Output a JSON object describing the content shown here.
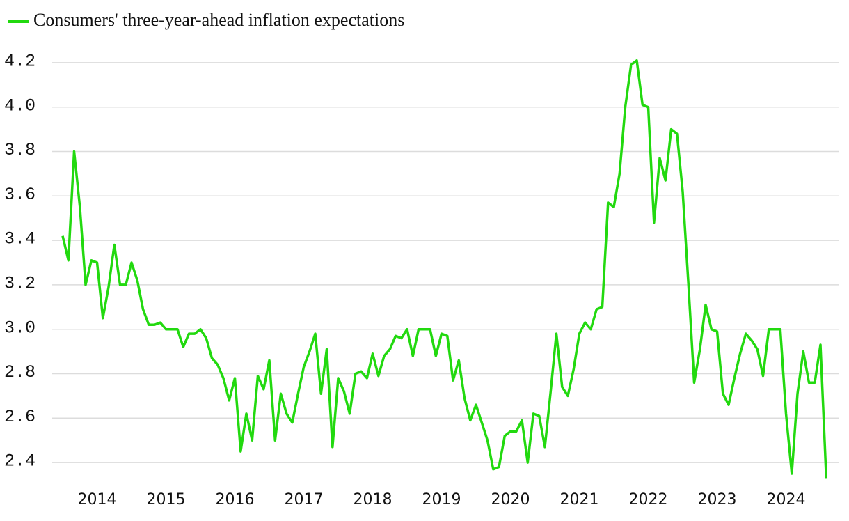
{
  "chart_data": {
    "type": "line",
    "categories": [
      null,
      null,
      null,
      null,
      null,
      null,
      "2014",
      null,
      null,
      null,
      null,
      null,
      null,
      null,
      null,
      null,
      null,
      null,
      "2015",
      null,
      null,
      null,
      null,
      null,
      null,
      null,
      null,
      null,
      null,
      null,
      "2016",
      null,
      null,
      null,
      null,
      null,
      null,
      null,
      null,
      null,
      null,
      null,
      "2017",
      null,
      null,
      null,
      null,
      null,
      null,
      null,
      null,
      null,
      null,
      null,
      "2018",
      null,
      null,
      null,
      null,
      null,
      null,
      null,
      null,
      null,
      null,
      null,
      "2019",
      null,
      null,
      null,
      null,
      null,
      null,
      null,
      null,
      null,
      null,
      null,
      "2020",
      null,
      null,
      null,
      null,
      null,
      null,
      null,
      null,
      null,
      null,
      null,
      "2021",
      null,
      null,
      null,
      null,
      null,
      null,
      null,
      null,
      null,
      null,
      null,
      "2022",
      null,
      null,
      null,
      null,
      null,
      null,
      null,
      null,
      null,
      null,
      null,
      "2023",
      null,
      null,
      null,
      null,
      null,
      null,
      null,
      null,
      null,
      null,
      null,
      "2024",
      null,
      null,
      null,
      null,
      null,
      null,
      null
    ],
    "series": [
      {
        "name": "Consumers' three-year-ahead inflation expectations",
        "color": "#22d90f",
        "values": [
          3.42,
          3.31,
          3.8,
          3.55,
          3.2,
          3.31,
          3.3,
          3.05,
          3.19,
          3.38,
          3.2,
          3.2,
          3.3,
          3.22,
          3.09,
          3.02,
          3.02,
          3.03,
          3.0,
          3.0,
          3.0,
          2.92,
          2.98,
          2.98,
          3.0,
          2.96,
          2.87,
          2.84,
          2.78,
          2.68,
          2.78,
          2.45,
          2.62,
          2.5,
          2.79,
          2.73,
          2.86,
          2.5,
          2.71,
          2.62,
          2.58,
          2.71,
          2.83,
          2.9,
          2.98,
          2.71,
          2.91,
          2.47,
          2.78,
          2.72,
          2.62,
          2.8,
          2.81,
          2.78,
          2.89,
          2.79,
          2.88,
          2.91,
          2.97,
          2.96,
          3.0,
          2.88,
          3.0,
          3.0,
          3.0,
          2.88,
          2.98,
          2.97,
          2.77,
          2.86,
          2.69,
          2.59,
          2.66,
          2.58,
          2.5,
          2.37,
          2.38,
          2.52,
          2.54,
          2.54,
          2.59,
          2.4,
          2.62,
          2.61,
          2.47,
          2.72,
          2.98,
          2.74,
          2.7,
          2.82,
          2.98,
          3.03,
          3.0,
          3.09,
          3.1,
          3.57,
          3.55,
          3.7,
          4.0,
          4.19,
          4.21,
          4.01,
          4.0,
          3.48,
          3.77,
          3.67,
          3.9,
          3.88,
          3.62,
          3.2,
          2.76,
          2.91,
          3.11,
          3.0,
          2.99,
          2.71,
          2.66,
          2.78,
          2.89,
          2.98,
          2.95,
          2.91,
          2.79,
          3.0,
          3.0,
          3.0,
          2.62,
          2.35,
          2.71,
          2.9,
          2.76,
          2.76,
          2.93,
          2.33
        ]
      }
    ],
    "ylim": [
      2.3,
      4.3
    ],
    "yticks": [
      2.4,
      2.6,
      2.8,
      {
        "value": 3.0,
        "label": "3.0"
      },
      3.2,
      3.4,
      3.6,
      3.8,
      {
        "value": 4.0,
        "label": "4.0"
      },
      4.2
    ],
    "grid": true,
    "legend": "top-left"
  }
}
